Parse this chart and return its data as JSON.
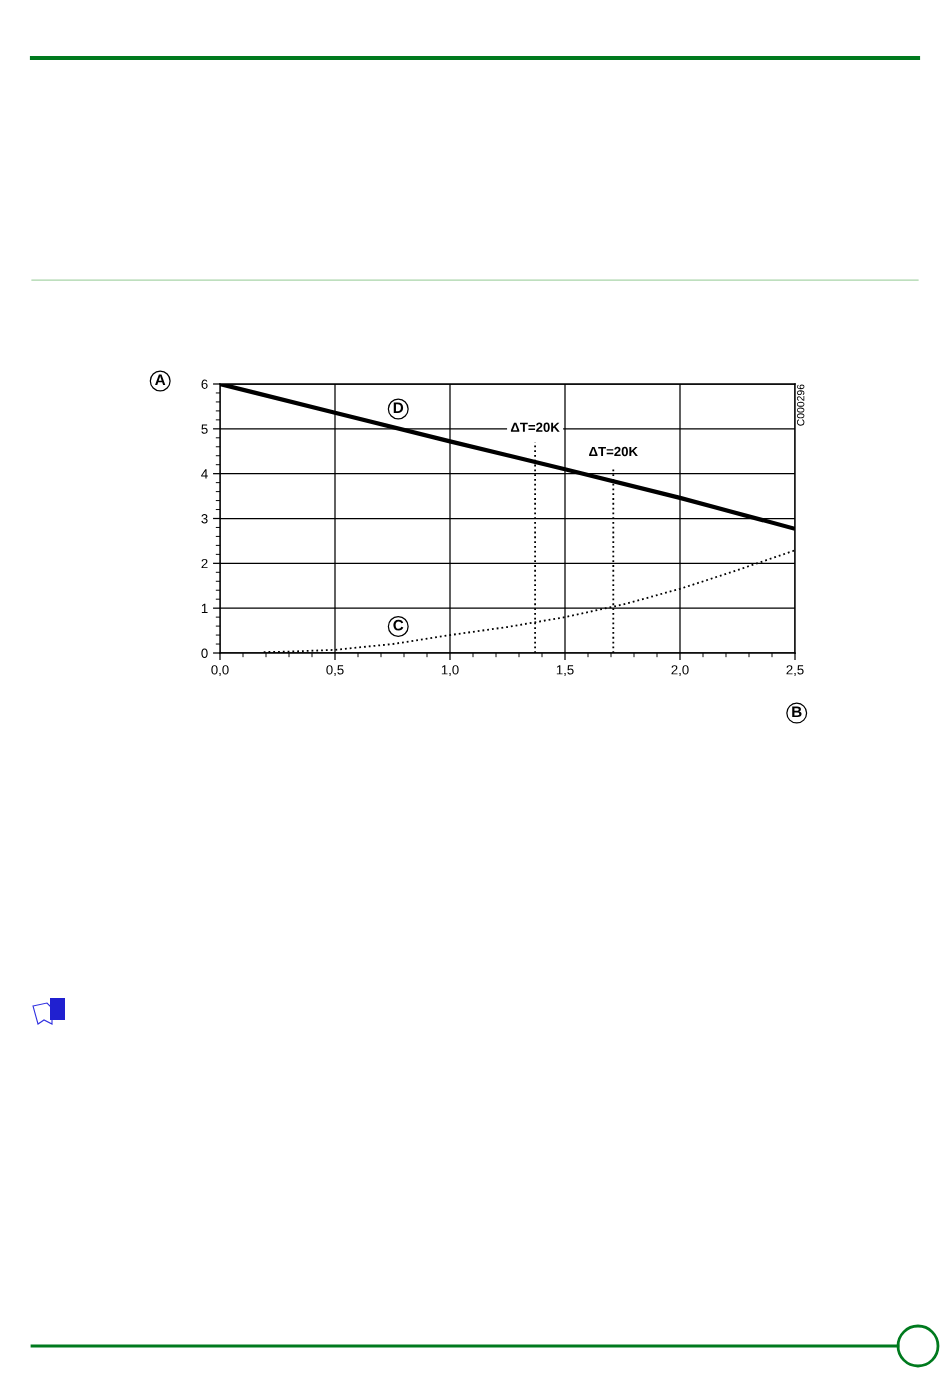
{
  "chart_data": {
    "type": "line",
    "xlabel": "B",
    "ylabel": "A",
    "xlim": [
      0,
      2.5
    ],
    "ylim": [
      0,
      6
    ],
    "xticks": [
      {
        "value": 0,
        "label": "0,0"
      },
      {
        "value": 0.1,
        "label": null
      },
      {
        "value": 0.2,
        "label": null
      },
      {
        "value": 0.3,
        "label": null
      },
      {
        "value": 0.4,
        "label": null
      },
      {
        "value": 0.5,
        "label": "0,5"
      },
      {
        "value": 0.6,
        "label": null
      },
      {
        "value": 0.7,
        "label": null
      },
      {
        "value": 0.8,
        "label": null
      },
      {
        "value": 0.9,
        "label": null
      },
      {
        "value": 1.0,
        "label": "1,0"
      },
      {
        "value": 1.1,
        "label": null
      },
      {
        "value": 1.2,
        "label": null
      },
      {
        "value": 1.3,
        "label": null
      },
      {
        "value": 1.4,
        "label": null
      },
      {
        "value": 1.5,
        "label": "1,5"
      },
      {
        "value": 1.6,
        "label": null
      },
      {
        "value": 1.7,
        "label": null
      },
      {
        "value": 1.8,
        "label": null
      },
      {
        "value": 1.9,
        "label": null
      },
      {
        "value": 2.0,
        "label": "2,0"
      },
      {
        "value": 2.1,
        "label": null
      },
      {
        "value": 2.2,
        "label": null
      },
      {
        "value": 2.3,
        "label": null
      },
      {
        "value": 2.4,
        "label": null
      },
      {
        "value": 2.5,
        "label": "2,5"
      }
    ],
    "yticks": [
      0,
      {
        "value": 0.2,
        "label": null
      },
      {
        "value": 0.4,
        "label": null
      },
      {
        "value": 0.6,
        "label": null
      },
      {
        "value": 0.8,
        "label": null
      },
      1,
      {
        "value": 1.2,
        "label": null
      },
      {
        "value": 1.4,
        "label": null
      },
      {
        "value": 1.6,
        "label": null
      },
      {
        "value": 1.8,
        "label": null
      },
      2,
      {
        "value": 2.2,
        "label": null
      },
      {
        "value": 2.4,
        "label": null
      },
      {
        "value": 2.6,
        "label": null
      },
      {
        "value": 2.8,
        "label": null
      },
      3,
      {
        "value": 3.2,
        "label": null
      },
      {
        "value": 3.4,
        "label": null
      },
      {
        "value": 3.6,
        "label": null
      },
      {
        "value": 3.8,
        "label": null
      },
      4,
      {
        "value": 4.2,
        "label": null
      },
      {
        "value": 4.4,
        "label": null
      },
      {
        "value": 4.6,
        "label": null
      },
      {
        "value": 4.8,
        "label": null
      },
      5,
      {
        "value": 5.2,
        "label": null
      },
      {
        "value": 5.4,
        "label": null
      },
      {
        "value": 5.6,
        "label": null
      },
      {
        "value": 5.8,
        "label": null
      },
      6
    ],
    "grid": true,
    "series": [
      {
        "name": "D",
        "color": "#000000",
        "line_style": "solid",
        "x": [
          0,
          0.5,
          1.0,
          1.5,
          2.0,
          2.5
        ],
        "values": [
          6.0,
          5.36,
          4.72,
          4.1,
          3.46,
          2.77
        ]
      },
      {
        "name": "C",
        "color": "#000000",
        "line_style": "dotted",
        "x": [
          0.19,
          0.3,
          0.5,
          0.75,
          1.0,
          1.25,
          1.5,
          1.75,
          2.0,
          2.25,
          2.5
        ],
        "values": [
          0.02,
          0.03,
          0.07,
          0.2,
          0.4,
          0.58,
          0.8,
          1.08,
          1.43,
          1.85,
          2.29
        ]
      },
      {
        "color": "#000000",
        "line_style": "dotted",
        "x": [
          1.37,
          1.37
        ],
        "values": [
          0,
          4.7
        ]
      },
      {
        "color": "#000000",
        "line_style": "dotted",
        "x": [
          1.71,
          1.71
        ],
        "values": [
          0,
          4.16
        ]
      }
    ],
    "annotations": [
      {
        "text": "ΔT=20K",
        "x": 1.37,
        "y": 4.7
      },
      {
        "text": "ΔT=20K",
        "x": 1.71,
        "y": 4.16
      },
      "C000296"
    ]
  }
}
